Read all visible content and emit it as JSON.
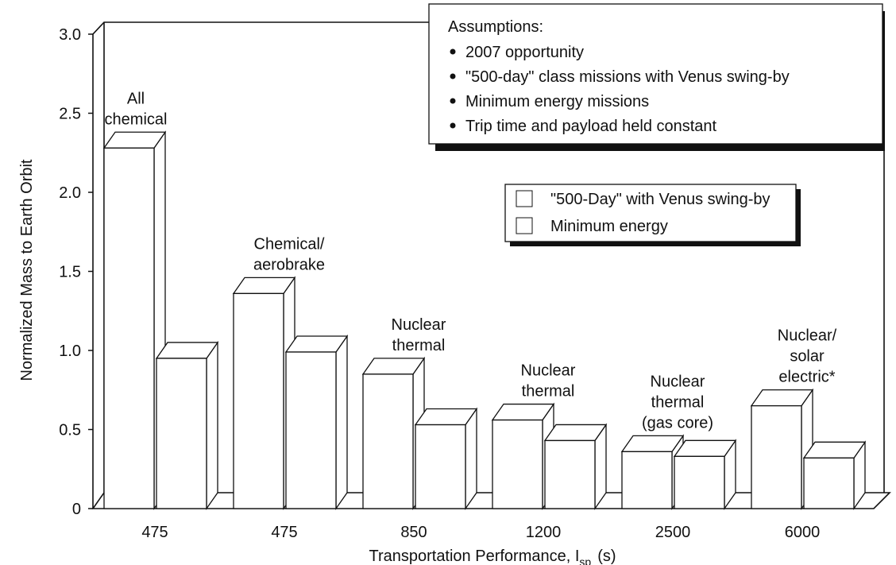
{
  "chart_data": {
    "type": "bar3d",
    "y_label": "Normalized Mass to Earth Orbit",
    "x_label": {
      "text": "Transportation Performance, I",
      "subscript": "sp",
      "unit": "(s)"
    },
    "categories": [
      "475",
      "475",
      "850",
      "1200",
      "2500",
      "6000"
    ],
    "group_labels": [
      [
        "All",
        "chemical"
      ],
      [
        "Chemical/",
        "aerobrake"
      ],
      [
        "Nuclear",
        "thermal"
      ],
      [
        "Nuclear",
        "thermal"
      ],
      [
        "Nuclear",
        "thermal",
        "(gas core)"
      ],
      [
        "Nuclear/",
        "solar",
        "electric*"
      ]
    ],
    "series": [
      {
        "name": "\"500-Day\" with Venus swing-by",
        "color": "#ffffff",
        "values": [
          2.28,
          1.36,
          0.85,
          0.56,
          0.36,
          0.65
        ]
      },
      {
        "name": "Minimum energy",
        "color": "#ffffff",
        "values": [
          0.95,
          0.99,
          0.53,
          0.43,
          0.33,
          0.32
        ]
      }
    ],
    "ylim": [
      0,
      3
    ],
    "yticks": [
      0,
      0.5,
      {
        "value": 1,
        "label": "1.0"
      },
      1.5,
      {
        "value": 2,
        "label": "2.0"
      },
      2.5,
      {
        "value": 3,
        "label": "3.0"
      }
    ],
    "assumptions": {
      "title": "Assumptions:",
      "items": [
        "2007 opportunity",
        "\"500-day\" class missions with Venus swing-by",
        "Minimum energy missions",
        "Trip time and payload held constant"
      ]
    }
  }
}
